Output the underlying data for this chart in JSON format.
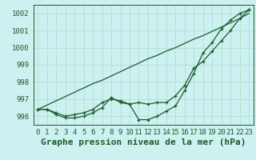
{
  "title": "Graphe pression niveau de la mer (hPa)",
  "background_color": "#cdf0f0",
  "grid_color": "#aaddcc",
  "line_color": "#1a5c2a",
  "x_labels": [
    "0",
    "1",
    "2",
    "3",
    "4",
    "5",
    "6",
    "7",
    "8",
    "9",
    "10",
    "11",
    "12",
    "13",
    "14",
    "15",
    "16",
    "17",
    "18",
    "19",
    "20",
    "21",
    "22",
    "23"
  ],
  "ylim": [
    995.5,
    1002.5
  ],
  "yticks": [
    996,
    997,
    998,
    999,
    1000,
    1001,
    1002
  ],
  "series_markers1": [
    996.4,
    996.4,
    996.1,
    995.9,
    995.9,
    996.0,
    996.2,
    996.5,
    997.1,
    996.8,
    996.7,
    995.8,
    995.8,
    996.0,
    996.3,
    996.6,
    997.5,
    998.5,
    999.7,
    1000.3,
    1001.1,
    1001.6,
    1002.0,
    1002.2
  ],
  "series_markers2": [
    996.4,
    996.4,
    996.2,
    996.0,
    996.1,
    996.2,
    996.4,
    996.8,
    997.0,
    996.9,
    996.7,
    996.8,
    996.7,
    996.8,
    996.8,
    997.2,
    997.8,
    998.8,
    999.2,
    999.8,
    1000.4,
    1001.0,
    1001.7,
    1002.2
  ],
  "series_line": [
    996.4,
    996.65,
    996.9,
    997.15,
    997.4,
    997.65,
    997.9,
    998.1,
    998.35,
    998.6,
    998.85,
    999.1,
    999.35,
    999.55,
    999.8,
    1000.0,
    1000.25,
    1000.5,
    1000.7,
    1000.95,
    1001.2,
    1001.45,
    1001.7,
    1002.0
  ],
  "title_fontsize": 8,
  "tick_fontsize": 6.5
}
